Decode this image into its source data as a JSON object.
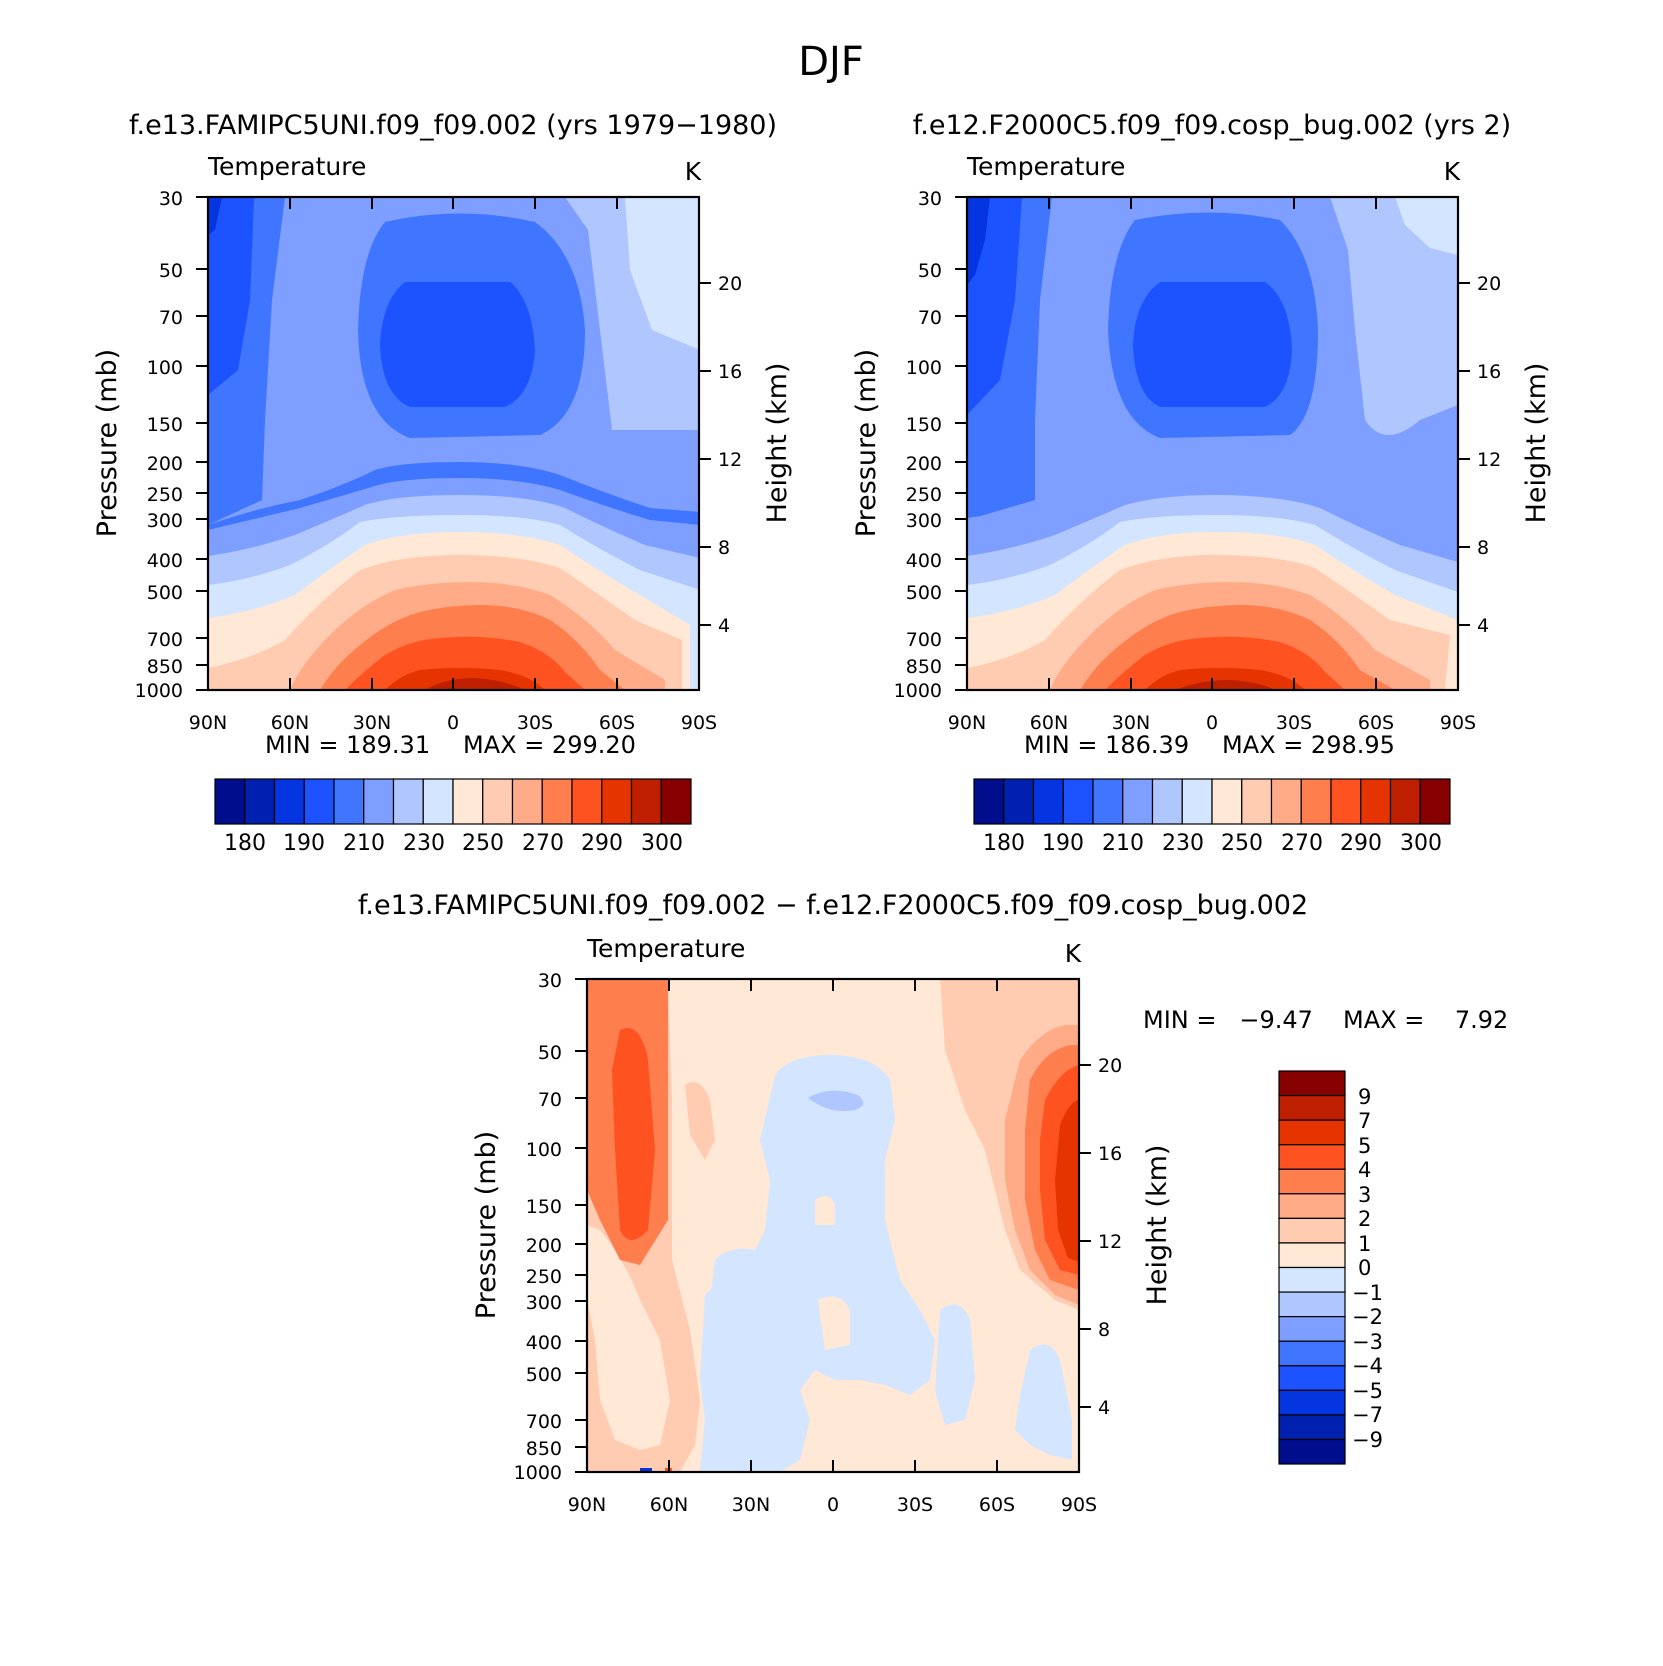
{
  "season": "DJF",
  "panels": [
    {
      "id": "model1",
      "title": "f.e13.FAMIPC5UNI.f09_f09.002 (yrs 1979−1980)",
      "variable": "Temperature",
      "units": "K",
      "min_label": "MIN = 189.31",
      "max_label": "MAX = 299.20",
      "colorbar_labels": [
        "180",
        "190",
        "210",
        "230",
        "250",
        "270",
        "290",
        "300"
      ]
    },
    {
      "id": "model2",
      "title": "f.e12.F2000C5.f09_f09.cosp_bug.002 (yrs 2)",
      "variable": "Temperature",
      "units": "K",
      "min_label": "MIN = 186.39",
      "max_label": "MAX = 298.95",
      "colorbar_labels": [
        "180",
        "190",
        "210",
        "230",
        "250",
        "270",
        "290",
        "300"
      ]
    },
    {
      "id": "diff",
      "title": "f.e13.FAMIPC5UNI.f09_f09.002 − f.e12.F2000C5.f09_f09.cosp_bug.002",
      "variable": "Temperature",
      "units": "K",
      "min_label": "MIN =   −9.47",
      "max_label": "MAX =    7.92",
      "colorbar_labels": [
        "9",
        "7",
        "5",
        "4",
        "3",
        "2",
        "1",
        "0",
        "−1",
        "−2",
        "−3",
        "−4",
        "−5",
        "−7",
        "−9"
      ]
    }
  ],
  "axes": {
    "ylabel": "Pressure (mb)",
    "ylabel_right": "Height (km)",
    "pressure_ticks": [
      "30",
      "50",
      "70",
      "100",
      "150",
      "200",
      "250",
      "300",
      "400",
      "500",
      "700",
      "850",
      "1000"
    ],
    "height_ticks": [
      "20",
      "16",
      "12",
      "8",
      "4"
    ],
    "lat_ticks": [
      "90N",
      "60N",
      "30N",
      "0",
      "30S",
      "60S",
      "90S"
    ]
  },
  "chart_data": [
    {
      "type": "heatmap",
      "name": "model1 zonal-mean temperature",
      "title": "f.e13.FAMIPC5UNI.f09_f09.002 (yrs 1979−1980)",
      "units": "K",
      "x_labels": [
        "90N",
        "60N",
        "30N",
        "0",
        "30S",
        "60S",
        "90S"
      ],
      "y_labels_mb": [
        30,
        50,
        70,
        100,
        150,
        200,
        250,
        300,
        400,
        500,
        700,
        850,
        1000
      ],
      "min": 189.31,
      "max": 299.2,
      "levels": [
        175,
        180,
        190,
        200,
        210,
        220,
        230,
        240,
        250,
        260,
        270,
        280,
        290,
        295,
        300
      ],
      "colors": [
        "#000d8c",
        "#0021b0",
        "#0535e0",
        "#1c52ff",
        "#3f75ff",
        "#7e9fff",
        "#b0c6ff",
        "#d4e6ff",
        "#ffe8d6",
        "#ffcbb1",
        "#ffab88",
        "#ff7e4e",
        "#ff5221",
        "#e63400",
        "#bd1f00",
        "#860000"
      ]
    },
    {
      "type": "heatmap",
      "name": "model2 zonal-mean temperature",
      "title": "f.e12.F2000C5.f09_f09.cosp_bug.002 (yrs 2)",
      "units": "K",
      "x_labels": [
        "90N",
        "60N",
        "30N",
        "0",
        "30S",
        "60S",
        "90S"
      ],
      "y_labels_mb": [
        30,
        50,
        70,
        100,
        150,
        200,
        250,
        300,
        400,
        500,
        700,
        850,
        1000
      ],
      "min": 186.39,
      "max": 298.95,
      "levels": [
        175,
        180,
        190,
        200,
        210,
        220,
        230,
        240,
        250,
        260,
        270,
        280,
        290,
        295,
        300
      ],
      "colors": [
        "#000d8c",
        "#0021b0",
        "#0535e0",
        "#1c52ff",
        "#3f75ff",
        "#7e9fff",
        "#b0c6ff",
        "#d4e6ff",
        "#ffe8d6",
        "#ffcbb1",
        "#ffab88",
        "#ff7e4e",
        "#ff5221",
        "#e63400",
        "#bd1f00",
        "#860000"
      ]
    },
    {
      "type": "heatmap",
      "name": "difference",
      "title": "f.e13.FAMIPC5UNI.f09_f09.002 − f.e12.F2000C5.f09_f09.cosp_bug.002",
      "units": "K",
      "x_labels": [
        "90N",
        "60N",
        "30N",
        "0",
        "30S",
        "60S",
        "90S"
      ],
      "y_labels_mb": [
        30,
        50,
        70,
        100,
        150,
        200,
        250,
        300,
        400,
        500,
        700,
        850,
        1000
      ],
      "min": -9.47,
      "max": 7.92,
      "levels": [
        9,
        7,
        5,
        4,
        3,
        2,
        1,
        0,
        -1,
        -2,
        -3,
        -4,
        -5,
        -7,
        -9
      ],
      "colors": [
        "#860000",
        "#bd1f00",
        "#e63400",
        "#ff5221",
        "#ff7e4e",
        "#ffab88",
        "#ffcbb1",
        "#ffe8d6",
        "#d4e6ff",
        "#b0c6ff",
        "#7e9fff",
        "#3f75ff",
        "#1c52ff",
        "#0535e0",
        "#0021b0",
        "#000d8c"
      ]
    }
  ]
}
